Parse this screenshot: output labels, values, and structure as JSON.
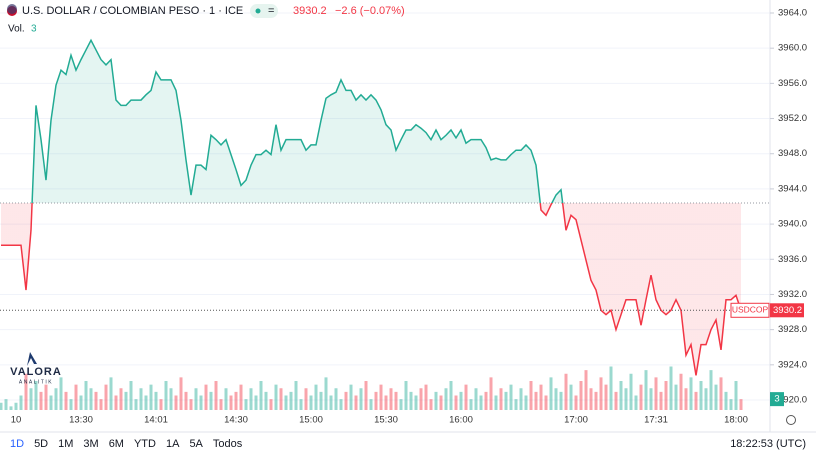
{
  "chart_data": {
    "type": "baseline",
    "title": "U.S. DOLLAR / COLOMBIAN PESO · 1 · ICE",
    "change": "−2.6 (−0.07%)",
    "vol_label": "Vol.",
    "symbol": "USDCOP",
    "watermark": [
      "VALORA",
      "ANALITIK"
    ],
    "ranges": [
      "1D",
      "5D",
      "1M",
      "3M",
      "6M",
      "YTD",
      "1A",
      "5A",
      "Todos"
    ],
    "clock": "18:22:53 (UTC)",
    "baseline": 3942.4,
    "colors": {
      "up": "#22ab94",
      "down": "#f23645"
    },
    "ylim": [
      3920,
      3964
    ],
    "yticks": [
      {
        "value": 3920,
        "label": "3920.0"
      },
      {
        "value": 3924,
        "label": "3924.0"
      },
      {
        "value": 3928,
        "label": "3928.0"
      },
      {
        "value": 3932,
        "label": "3932.0"
      },
      {
        "value": 3936,
        "label": "3936.0"
      },
      {
        "value": 3940,
        "label": "3940.0"
      },
      {
        "value": 3944,
        "label": "3944.0"
      },
      {
        "value": 3948,
        "label": "3948.0"
      },
      {
        "value": 3952,
        "label": "3952.0"
      },
      {
        "value": 3956,
        "label": "3956.0"
      },
      {
        "value": 3960,
        "label": "3960.0"
      },
      {
        "value": 3964,
        "label": "3964.0"
      }
    ],
    "categories": [
      null,
      null,
      null,
      "10",
      null,
      null,
      null,
      null,
      null,
      null,
      null,
      null,
      null,
      null,
      null,
      null,
      "13:30",
      null,
      null,
      null,
      null,
      null,
      null,
      null,
      null,
      null,
      null,
      null,
      null,
      null,
      null,
      "14:01",
      null,
      null,
      null,
      null,
      null,
      null,
      null,
      null,
      null,
      null,
      null,
      null,
      null,
      null,
      null,
      "14:30",
      null,
      null,
      null,
      null,
      null,
      null,
      null,
      null,
      null,
      null,
      null,
      null,
      null,
      null,
      "15:00",
      null,
      null,
      null,
      null,
      null,
      null,
      null,
      null,
      null,
      null,
      null,
      null,
      null,
      null,
      "15:30",
      null,
      null,
      null,
      null,
      null,
      null,
      null,
      null,
      null,
      null,
      null,
      null,
      null,
      null,
      "16:00",
      null,
      null,
      null,
      null,
      null,
      null,
      null,
      null,
      null,
      null,
      null,
      null,
      null,
      null,
      null,
      null,
      null,
      null,
      null,
      null,
      null,
      null,
      "17:00",
      null,
      null,
      null,
      null,
      null,
      null,
      null,
      null,
      null,
      null,
      null,
      null,
      null,
      null,
      null,
      "17:31",
      null,
      null,
      null,
      null,
      null,
      null,
      null,
      null,
      null,
      null,
      null,
      null,
      null,
      null,
      null,
      "18:00",
      null
    ],
    "series": [
      {
        "name": "USDCOP",
        "values": [
          3937.6,
          3937.6,
          3937.6,
          3937.6,
          3937.6,
          3932.5,
          3939.3,
          3953.5,
          3949.6,
          3945.0,
          3951.8,
          3955.8,
          3957.5,
          3957.0,
          3959.2,
          3957.5,
          3958.7,
          3959.8,
          3960.9,
          3959.8,
          3958.7,
          3958.1,
          3958.7,
          3954.1,
          3953.5,
          3953.5,
          3954.1,
          3954.1,
          3954.1,
          3954.7,
          3955.2,
          3957.3,
          3956.4,
          3956.4,
          3956.4,
          3955.2,
          3951.8,
          3947.3,
          3943.3,
          3946.7,
          3946.7,
          3946.2,
          3950.1,
          3949.6,
          3949.0,
          3949.6,
          3947.9,
          3946.2,
          3944.4,
          3945.0,
          3946.7,
          3947.9,
          3947.9,
          3948.4,
          3947.9,
          3951.3,
          3948.4,
          3949.6,
          3949.6,
          3949.6,
          3949.6,
          3948.4,
          3949.0,
          3949.0,
          3951.8,
          3954.3,
          3954.7,
          3955.0,
          3956.4,
          3955.2,
          3955.2,
          3954.1,
          3954.7,
          3954.1,
          3954.7,
          3954.1,
          3953.0,
          3951.3,
          3950.7,
          3948.4,
          3949.6,
          3950.7,
          3950.7,
          3951.3,
          3950.9,
          3950.4,
          3949.6,
          3950.7,
          3949.6,
          3950.1,
          3950.7,
          3949.8,
          3950.7,
          3949.2,
          3949.6,
          3949.6,
          3949.6,
          3948.7,
          3947.3,
          3947.5,
          3947.3,
          3947.3,
          3947.9,
          3948.4,
          3948.4,
          3949.0,
          3948.4,
          3946.7,
          3941.6,
          3941.0,
          3942.2,
          3943.3,
          3943.9,
          3939.3,
          3941.0,
          3940.5,
          3938.2,
          3935.9,
          3933.6,
          3932.5,
          3930.2,
          3929.7,
          3930.2,
          3928.0,
          3929.7,
          3931.4,
          3931.4,
          3931.4,
          3928.5,
          3931.4,
          3934.2,
          3931.4,
          3930.2,
          3929.7,
          3930.2,
          3931.4,
          3930.2,
          3925.1,
          3926.3,
          3922.8,
          3926.3,
          3926.3,
          3928.0,
          3929.1,
          3925.7,
          3931.4,
          3931.4,
          3931.9,
          3930.2
        ]
      },
      {
        "name": "Vol.",
        "axis": "y2",
        "values": [
          2,
          3,
          1,
          2,
          4,
          10,
          6,
          8,
          5,
          7,
          4,
          6,
          9,
          5,
          3,
          7,
          4,
          8,
          6,
          5,
          3,
          7,
          9,
          4,
          6,
          5,
          8,
          3,
          6,
          4,
          7,
          5,
          3,
          8,
          6,
          4,
          9,
          5,
          3,
          6,
          4,
          7,
          5,
          8,
          3,
          6,
          4,
          5,
          7,
          3,
          6,
          4,
          8,
          5,
          3,
          7,
          6,
          4,
          5,
          8,
          3,
          6,
          4,
          7,
          5,
          9,
          4,
          6,
          3,
          5,
          7,
          4,
          6,
          8,
          3,
          5,
          7,
          4,
          6,
          5,
          3,
          8,
          5,
          4,
          6,
          7,
          3,
          5,
          4,
          6,
          8,
          4,
          5,
          7,
          3,
          6,
          4,
          5,
          9,
          4,
          6,
          5,
          7,
          3,
          6,
          4,
          8,
          5,
          7,
          4,
          9,
          6,
          5,
          10,
          7,
          4,
          8,
          11,
          6,
          5,
          9,
          7,
          12,
          5,
          8,
          6,
          10,
          4,
          7,
          11,
          6,
          9,
          5,
          8,
          12,
          7,
          10,
          6,
          9,
          5,
          8,
          6,
          11,
          7,
          9,
          5,
          3,
          8,
          3
        ]
      }
    ],
    "y2lim": [
      0,
      16
    ]
  }
}
